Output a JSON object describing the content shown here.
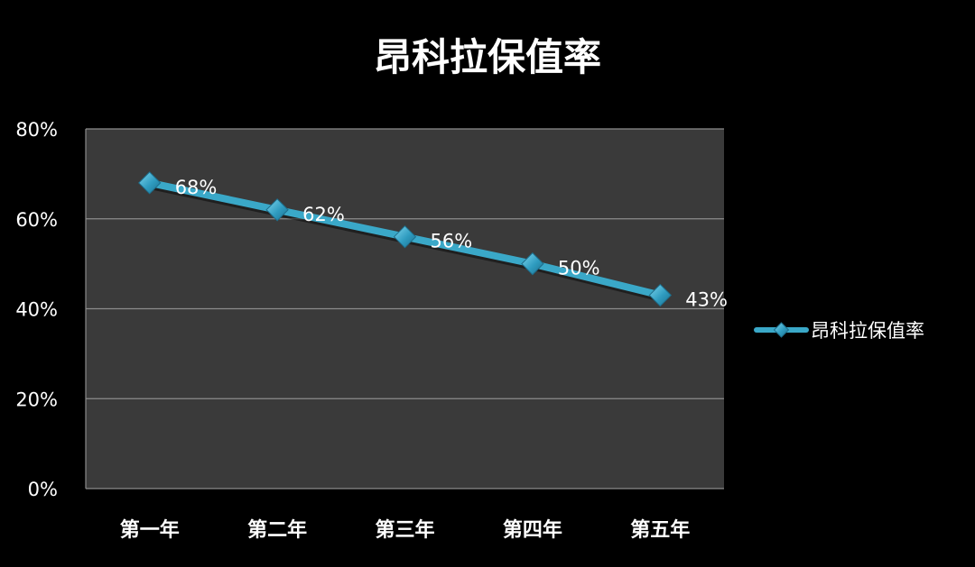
{
  "chart_data": {
    "type": "line",
    "title": "昂科拉保值率",
    "categories": [
      "第一年",
      "第二年",
      "第三年",
      "第四年",
      "第五年"
    ],
    "series": [
      {
        "name": "昂科拉保值率",
        "values": [
          68,
          62,
          56,
          50,
          43
        ],
        "labels": [
          "68%",
          "62%",
          "56%",
          "50%",
          "43%"
        ],
        "color": "#3aa8c8"
      }
    ],
    "y_ticks": [
      "0%",
      "20%",
      "40%",
      "60%",
      "80%"
    ],
    "ylim": [
      0,
      80
    ],
    "grid": true,
    "legend": "right",
    "plot_background": "#3a3a3a",
    "background": "#000000",
    "gridline_color": "#8c8c8c"
  }
}
